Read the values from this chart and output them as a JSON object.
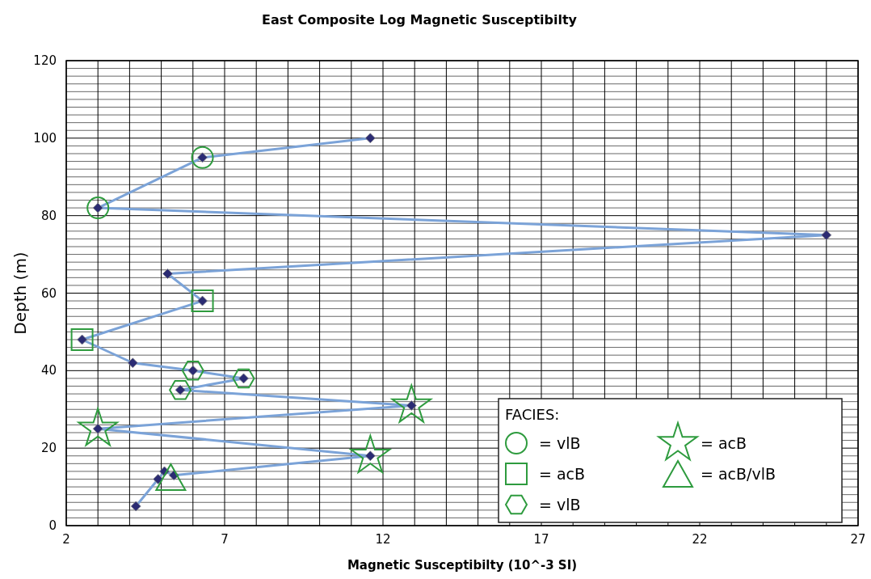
{
  "chart_data": {
    "type": "line",
    "title": "East Composite Log Magnetic Susceptibilty",
    "xlabel": "Magnetic Susceptibilty (10^-3 SI)",
    "ylabel": "Depth (m)",
    "xlim": [
      2,
      27
    ],
    "ylim": [
      0,
      120
    ],
    "xticks": [
      2,
      {
        "value": 3,
        "label": null
      },
      {
        "value": 4,
        "label": null
      },
      {
        "value": 5,
        "label": null
      },
      {
        "value": 6,
        "label": null
      },
      7,
      {
        "value": 8,
        "label": null
      },
      {
        "value": 9,
        "label": null
      },
      {
        "value": 10,
        "label": null
      },
      {
        "value": 11,
        "label": null
      },
      12,
      {
        "value": 13,
        "label": null
      },
      {
        "value": 14,
        "label": null
      },
      {
        "value": 15,
        "label": null
      },
      {
        "value": 16,
        "label": null
      },
      17,
      {
        "value": 18,
        "label": null
      },
      {
        "value": 19,
        "label": null
      },
      {
        "value": 20,
        "label": null
      },
      {
        "value": 21,
        "label": null
      },
      22,
      {
        "value": 23,
        "label": null
      },
      {
        "value": 24,
        "label": null
      },
      {
        "value": 25,
        "label": null
      },
      {
        "value": 26,
        "label": null
      },
      27
    ],
    "yticks": [
      0,
      {
        "value": 2,
        "label": null
      },
      {
        "value": 4,
        "label": null
      },
      {
        "value": 6,
        "label": null
      },
      {
        "value": 8,
        "label": null
      },
      {
        "value": 10,
        "label": null
      },
      {
        "value": 12,
        "label": null
      },
      {
        "value": 14,
        "label": null
      },
      {
        "value": 16,
        "label": null
      },
      {
        "value": 18,
        "label": null
      },
      20,
      {
        "value": 22,
        "label": null
      },
      {
        "value": 24,
        "label": null
      },
      {
        "value": 26,
        "label": null
      },
      {
        "value": 28,
        "label": null
      },
      {
        "value": 30,
        "label": null
      },
      {
        "value": 32,
        "label": null
      },
      {
        "value": 34,
        "label": null
      },
      {
        "value": 36,
        "label": null
      },
      {
        "value": 38,
        "label": null
      },
      40,
      {
        "value": 42,
        "label": null
      },
      {
        "value": 44,
        "label": null
      },
      {
        "value": 46,
        "label": null
      },
      {
        "value": 48,
        "label": null
      },
      {
        "value": 50,
        "label": null
      },
      {
        "value": 52,
        "label": null
      },
      {
        "value": 54,
        "label": null
      },
      {
        "value": 56,
        "label": null
      },
      {
        "value": 58,
        "label": null
      },
      60,
      {
        "value": 62,
        "label": null
      },
      {
        "value": 64,
        "label": null
      },
      {
        "value": 66,
        "label": null
      },
      {
        "value": 68,
        "label": null
      },
      {
        "value": 70,
        "label": null
      },
      {
        "value": 72,
        "label": null
      },
      {
        "value": 74,
        "label": null
      },
      {
        "value": 76,
        "label": null
      },
      {
        "value": 78,
        "label": null
      },
      80,
      {
        "value": 82,
        "label": null
      },
      {
        "value": 84,
        "label": null
      },
      {
        "value": 86,
        "label": null
      },
      {
        "value": 88,
        "label": null
      },
      {
        "value": 90,
        "label": null
      },
      {
        "value": 92,
        "label": null
      },
      {
        "value": 94,
        "label": null
      },
      {
        "value": 96,
        "label": null
      },
      {
        "value": 98,
        "label": null
      },
      100,
      {
        "value": 102,
        "label": null
      },
      {
        "value": 104,
        "label": null
      },
      {
        "value": 106,
        "label": null
      },
      {
        "value": 108,
        "label": null
      },
      {
        "value": 110,
        "label": null
      },
      {
        "value": 112,
        "label": null
      },
      {
        "value": 114,
        "label": null
      },
      {
        "value": 116,
        "label": null
      },
      {
        "value": 118,
        "label": null
      },
      120
    ],
    "grid": true,
    "legend": "bottom right",
    "legend_title": "FACIES:",
    "series": [
      {
        "color": "#7ba3d8",
        "marker": "none",
        "x": [
          11.6,
          6.3,
          3.0,
          26.0,
          5.2,
          6.3,
          2.5,
          4.1,
          6.0,
          7.6,
          5.6,
          12.9,
          3.0,
          11.6,
          5.4,
          5.1,
          4.9,
          4.2
        ],
        "values": [
          100,
          95,
          82,
          75,
          65,
          58,
          48,
          42,
          40,
          38,
          35,
          31,
          25,
          18,
          13,
          14,
          12,
          5
        ]
      },
      {
        "type": "scatter",
        "color": "#2b2b73",
        "marker": "diamond",
        "x": [
          11.6,
          6.3,
          3.0,
          26.0,
          5.2,
          6.3,
          2.5,
          4.1,
          6.0,
          7.6,
          5.6,
          12.9,
          3.0,
          11.6,
          5.4,
          5.1,
          4.9,
          4.2
        ],
        "values": [
          100,
          95,
          82,
          75,
          65,
          58,
          48,
          42,
          40,
          38,
          35,
          31,
          25,
          18,
          13,
          14,
          12,
          5
        ]
      },
      {
        "type": "scatter",
        "name": "= vlB",
        "color": "#2e9b3e",
        "marker": "circle",
        "x": [
          6.3,
          3.0
        ],
        "values": [
          95,
          82
        ]
      },
      {
        "type": "scatter",
        "name": "= acB",
        "color": "#2e9b3e",
        "marker": "square",
        "x": [
          6.3,
          2.5
        ],
        "values": [
          58,
          48
        ]
      },
      {
        "type": "scatter",
        "name": "= vlB",
        "color": "#2e9b3e",
        "x": [
          6.0,
          7.6,
          5.6
        ],
        "values": [
          40,
          38,
          35
        ]
      },
      {
        "type": "scatter",
        "name": "= acB",
        "color": "#2e9b3e",
        "marker": "star",
        "x": [
          12.9,
          3.0,
          11.6
        ],
        "values": [
          31,
          25,
          18
        ]
      },
      {
        "type": "scatter",
        "name": "= acB/vlB",
        "color": "#2e9b3e",
        "marker": "triangle",
        "x": [
          5.3
        ],
        "values": [
          12.5
        ]
      }
    ]
  }
}
